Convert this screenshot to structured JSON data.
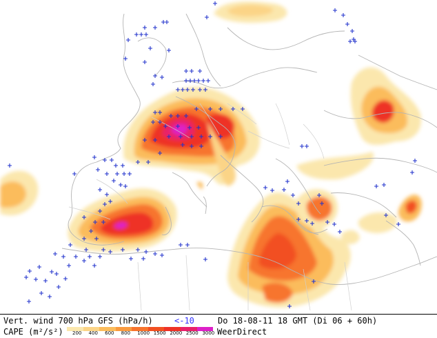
{
  "map": {
    "title": "Vert. wind 700 hPa GFS (hPa/h)",
    "threshold": "<-10",
    "datetime": "Do 18-08-11 18 GMT (Di 06 + 60h)",
    "brand": "WeerDirect",
    "colors": {
      "land_border": "#b4b4b4",
      "marker": "#2233cc",
      "threshold_text": "#3333ff"
    }
  },
  "legend": {
    "label": "CAPE (m²/s²)",
    "ticks": [
      "200",
      "400",
      "600",
      "800",
      "1000",
      "1500",
      "2000",
      "2500",
      "3000"
    ],
    "colors": [
      "#fbe7ad",
      "#fbd487",
      "#fbbc5c",
      "#f99a3f",
      "#f7742d",
      "#f25021",
      "#ee3227",
      "#e8206b",
      "#dd20c8"
    ]
  }
}
